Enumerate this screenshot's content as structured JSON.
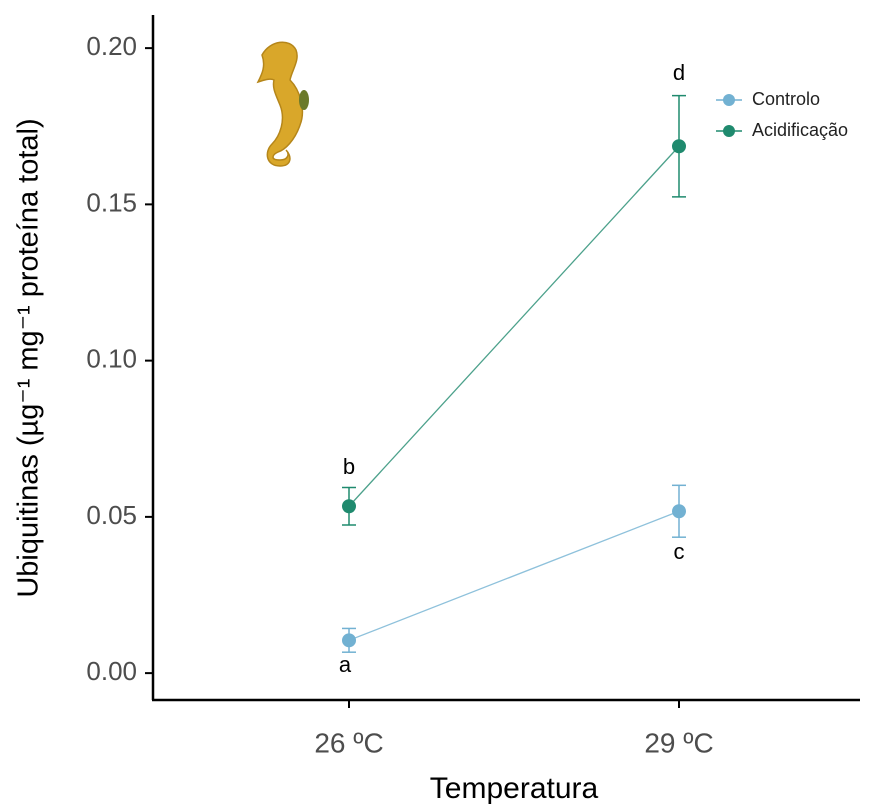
{
  "chart_data": {
    "type": "line",
    "x_label": "Temperatura",
    "y_label": "Ubiquitinas (µg⁻¹ mg⁻¹ proteína total)",
    "categories": [
      "26 ºC",
      "29 ºC"
    ],
    "series": [
      {
        "name": "Controlo",
        "color": "#72b1d2",
        "values": [
          0.0105,
          0.0518
        ],
        "errors": [
          0.0038,
          0.0083
        ]
      },
      {
        "name": "Acidificação",
        "color": "#1f8a6e",
        "values": [
          0.0534,
          0.1686
        ],
        "errors": [
          0.006,
          0.0162
        ]
      }
    ],
    "annotations": [
      "a",
      "b",
      "c",
      "d"
    ],
    "ylim": [
      -0.0086,
      0.2106
    ],
    "yticks": [
      {
        "value": 0,
        "label": "0.00"
      },
      {
        "value": 0.05,
        "label": "0.05"
      },
      {
        "value": 0.1,
        "label": "0.10"
      },
      {
        "value": 0.15,
        "label": "0.15"
      },
      {
        "value": 0.2,
        "label": "0.20"
      }
    ],
    "legend": "top-right",
    "grid": false
  }
}
